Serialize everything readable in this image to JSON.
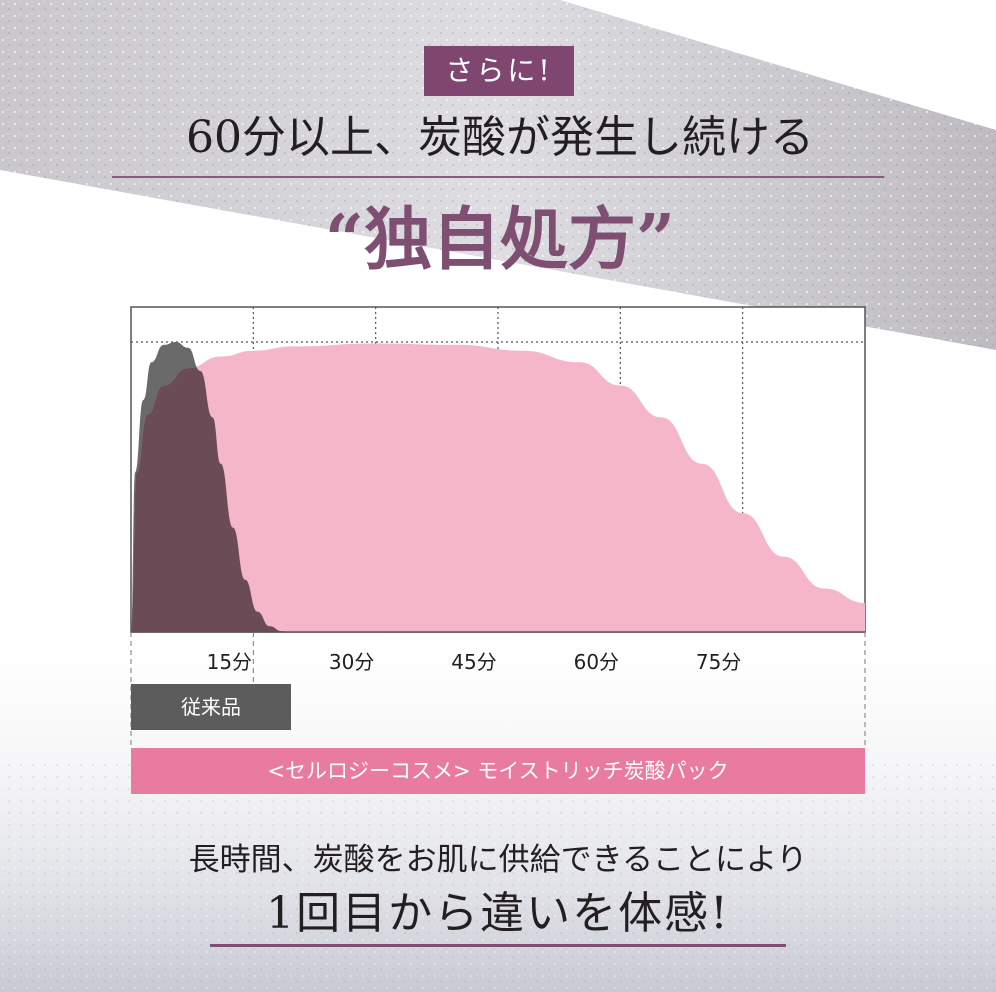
{
  "badge": "さらに!",
  "headline": "60分以上、炭酸が発生し続ける",
  "highlight": "“独自処方”",
  "chart_data": {
    "type": "area",
    "xlabel": "",
    "ylabel": "",
    "xlim": [
      0,
      90
    ],
    "ylim": [
      0,
      100
    ],
    "x_ticks": [
      15,
      30,
      45,
      60,
      75
    ],
    "x_tick_labels": [
      "15分",
      "30分",
      "45分",
      "60分",
      "75分"
    ],
    "grid": true,
    "series": [
      {
        "name": "従来品",
        "color": "#5c5c5c",
        "x": [
          0,
          0.5,
          1.5,
          2.5,
          4,
          5.5,
          7,
          8.5,
          10,
          11,
          12.5,
          14,
          15.5,
          17,
          18.5,
          19
        ],
        "y": [
          0,
          55,
          80,
          93,
          99,
          100,
          98,
          90,
          74,
          58,
          36,
          18,
          7,
          2,
          0.3,
          0
        ]
      },
      {
        "name": "<セルロジーコスメ> モイストリッチ炭酸パック",
        "color": "#f4b6c8",
        "x": [
          0,
          0.7,
          2,
          4,
          7,
          11,
          15,
          20,
          30,
          40,
          48,
          55,
          60,
          65,
          70,
          75,
          80,
          85,
          90
        ],
        "y": [
          0,
          55,
          75,
          85,
          91,
          95,
          97,
          98.5,
          99.5,
          99,
          97,
          93,
          85,
          74,
          58,
          41,
          26,
          15,
          10
        ]
      }
    ]
  },
  "legend": {
    "conventional": "従来品",
    "product": "<セルロジーコスメ> モイストリッチ炭酸パック"
  },
  "caption": "長時間、炭酸をお肌に供給できることにより",
  "emphasis": "1回目から違いを体感!"
}
